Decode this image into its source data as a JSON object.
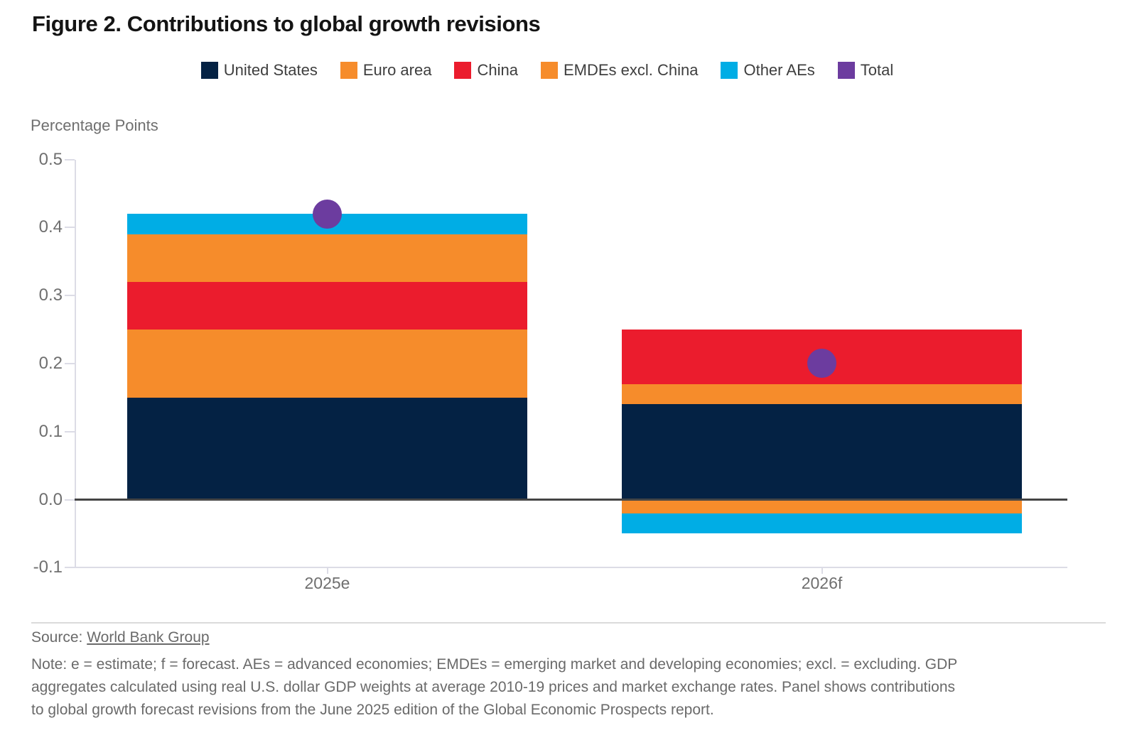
{
  "title": "Figure 2. Contributions to global growth revisions",
  "y_axis_title": "Percentage Points",
  "chart_data": {
    "type": "bar",
    "stacked": true,
    "title": "Figure 2. Contributions to global growth revisions",
    "categories": [
      "2025e",
      "2026f"
    ],
    "series": [
      {
        "name": "United States",
        "color": "#042244",
        "values": [
          0.15,
          0.14
        ]
      },
      {
        "name": "Euro area",
        "color": "#F68C2B",
        "values": [
          0.1,
          0.03
        ]
      },
      {
        "name": "China",
        "color": "#EB1C2D",
        "values": [
          0.07,
          0.08
        ]
      },
      {
        "name": "EMDEs excl. China",
        "color": "#F68C2B",
        "values": [
          0.07,
          -0.02
        ]
      },
      {
        "name": "Other AEs",
        "color": "#00ADE5",
        "values": [
          0.03,
          -0.03
        ]
      }
    ],
    "total_series": {
      "name": "Total",
      "color": "#6C3C9F",
      "values": [
        0.42,
        0.2
      ]
    },
    "xlabel": "",
    "ylabel": "Percentage Points",
    "ylim": [
      -0.1,
      0.5
    ],
    "yticks": [
      0.5,
      0.4,
      0.3,
      0.2,
      0.1,
      0.0,
      -0.1
    ],
    "legend_position": "top",
    "grid": false
  },
  "footer": {
    "source_prefix": "Source: ",
    "source_link": "World Bank Group",
    "note_lines": [
      "Note: e = estimate; f = forecast. AEs = advanced economies; EMDEs = emerging market and developing economies; excl. = excluding. GDP",
      "aggregates calculated using real U.S. dollar GDP weights at average 2010-19 prices and market exchange rates. Panel shows contributions",
      "to global growth forecast revisions from the June 2025 edition of the Global Economic Prospects report."
    ]
  }
}
